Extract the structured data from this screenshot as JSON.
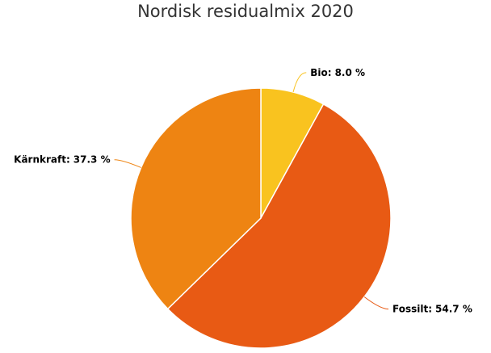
{
  "chart_data": {
    "type": "pie",
    "title": "Nordisk residualmix 2020",
    "categories": [
      "Bio",
      "Fossilt",
      "Kärnkraft"
    ],
    "values": [
      8.0,
      54.7,
      37.3
    ],
    "value_labels": [
      "8.0 %",
      "54.7 %",
      "37.3 %"
    ],
    "label_separator": ":",
    "colors": [
      "#f9c31f",
      "#e85a14",
      "#ee8412"
    ]
  }
}
